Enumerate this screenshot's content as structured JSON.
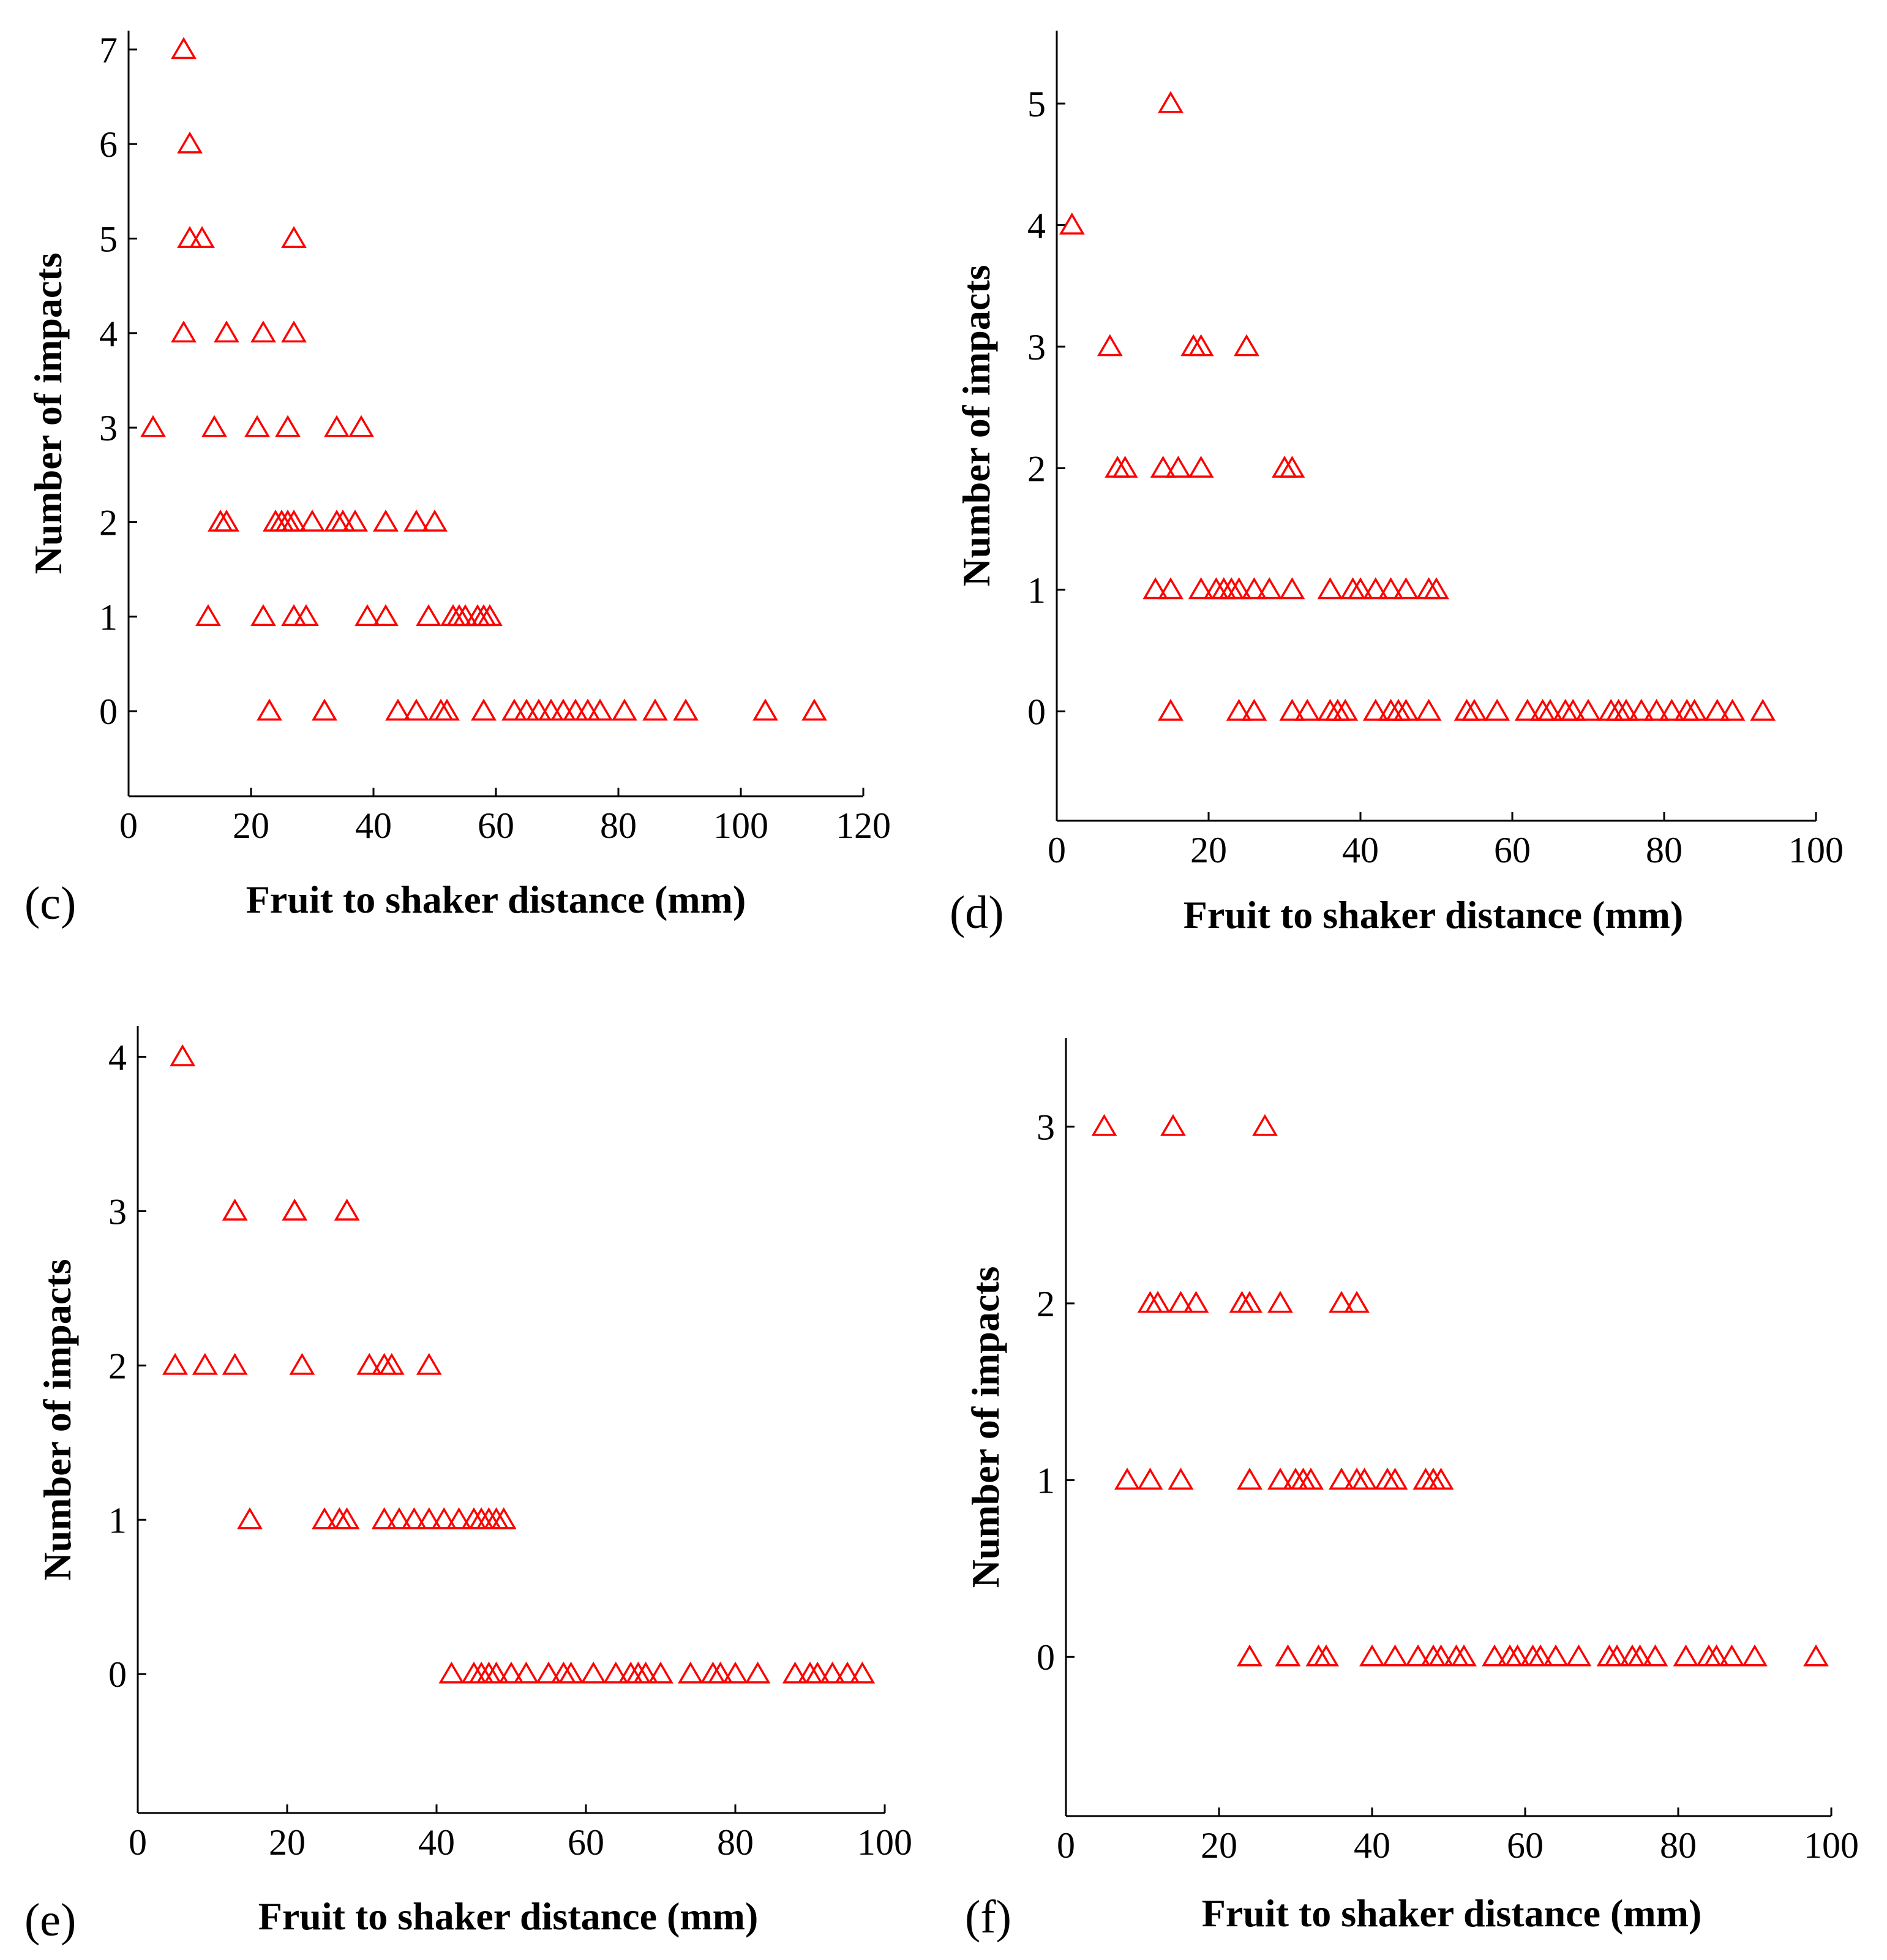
{
  "figure": {
    "marker_color": "#ff0000",
    "axis_color": "#000000"
  },
  "chart_data": [
    {
      "panel": "(c)",
      "type": "scatter",
      "marker": "triangle-open",
      "xlabel": "Fruit to shaker distance (mm)",
      "ylabel": "Number of impacts",
      "xlim": [
        0,
        120
      ],
      "ylim": [
        -0.9,
        7.2
      ],
      "xticks": [
        0,
        20,
        40,
        60,
        80,
        100,
        120
      ],
      "yticks": [
        0,
        1,
        2,
        3,
        4,
        5,
        6,
        7
      ],
      "points": [
        [
          9,
          7
        ],
        [
          10,
          6
        ],
        [
          10,
          5
        ],
        [
          12,
          5
        ],
        [
          27,
          5
        ],
        [
          9,
          4
        ],
        [
          16,
          4
        ],
        [
          22,
          4
        ],
        [
          27,
          4
        ],
        [
          4,
          3
        ],
        [
          14,
          3
        ],
        [
          21,
          3
        ],
        [
          26,
          3
        ],
        [
          34,
          3
        ],
        [
          38,
          3
        ],
        [
          15,
          2
        ],
        [
          16,
          2
        ],
        [
          24,
          2
        ],
        [
          25,
          2
        ],
        [
          26,
          2
        ],
        [
          27,
          2
        ],
        [
          30,
          2
        ],
        [
          34,
          2
        ],
        [
          35,
          2
        ],
        [
          37,
          2
        ],
        [
          42,
          2
        ],
        [
          47,
          2
        ],
        [
          50,
          2
        ],
        [
          13,
          1
        ],
        [
          22,
          1
        ],
        [
          27,
          1
        ],
        [
          29,
          1
        ],
        [
          39,
          1
        ],
        [
          42,
          1
        ],
        [
          49,
          1
        ],
        [
          53,
          1
        ],
        [
          54,
          1
        ],
        [
          55,
          1
        ],
        [
          57,
          1
        ],
        [
          58,
          1
        ],
        [
          59,
          1
        ],
        [
          23,
          0
        ],
        [
          32,
          0
        ],
        [
          44,
          0
        ],
        [
          47,
          0
        ],
        [
          51,
          0
        ],
        [
          52,
          0
        ],
        [
          58,
          0
        ],
        [
          63,
          0
        ],
        [
          65,
          0
        ],
        [
          67,
          0
        ],
        [
          69,
          0
        ],
        [
          71,
          0
        ],
        [
          73,
          0
        ],
        [
          75,
          0
        ],
        [
          77,
          0
        ],
        [
          81,
          0
        ],
        [
          86,
          0
        ],
        [
          91,
          0
        ],
        [
          104,
          0
        ],
        [
          112,
          0
        ]
      ]
    },
    {
      "panel": "(d)",
      "type": "scatter",
      "marker": "triangle-open",
      "xlabel": "Fruit to shaker distance (mm)",
      "ylabel": "Number of impacts",
      "xlim": [
        0,
        100
      ],
      "ylim": [
        -0.9,
        5.6
      ],
      "xticks": [
        0,
        20,
        40,
        60,
        80,
        100
      ],
      "yticks": [
        0,
        1,
        2,
        3,
        4,
        5
      ],
      "points": [
        [
          15,
          5
        ],
        [
          2,
          4
        ],
        [
          7,
          3
        ],
        [
          18,
          3
        ],
        [
          19,
          3
        ],
        [
          25,
          3
        ],
        [
          8,
          2
        ],
        [
          9,
          2
        ],
        [
          14,
          2
        ],
        [
          16,
          2
        ],
        [
          19,
          2
        ],
        [
          30,
          2
        ],
        [
          31,
          2
        ],
        [
          13,
          1
        ],
        [
          15,
          1
        ],
        [
          19,
          1
        ],
        [
          21,
          1
        ],
        [
          22,
          1
        ],
        [
          23,
          1
        ],
        [
          24,
          1
        ],
        [
          26,
          1
        ],
        [
          28,
          1
        ],
        [
          31,
          1
        ],
        [
          36,
          1
        ],
        [
          39,
          1
        ],
        [
          40,
          1
        ],
        [
          42,
          1
        ],
        [
          44,
          1
        ],
        [
          46,
          1
        ],
        [
          49,
          1
        ],
        [
          50,
          1
        ],
        [
          15,
          0
        ],
        [
          24,
          0
        ],
        [
          26,
          0
        ],
        [
          31,
          0
        ],
        [
          33,
          0
        ],
        [
          36,
          0
        ],
        [
          37,
          0
        ],
        [
          38,
          0
        ],
        [
          42,
          0
        ],
        [
          44,
          0
        ],
        [
          45,
          0
        ],
        [
          46,
          0
        ],
        [
          49,
          0
        ],
        [
          54,
          0
        ],
        [
          55,
          0
        ],
        [
          58,
          0
        ],
        [
          62,
          0
        ],
        [
          64,
          0
        ],
        [
          65,
          0
        ],
        [
          67,
          0
        ],
        [
          68,
          0
        ],
        [
          70,
          0
        ],
        [
          73,
          0
        ],
        [
          74,
          0
        ],
        [
          75,
          0
        ],
        [
          77,
          0
        ],
        [
          79,
          0
        ],
        [
          81,
          0
        ],
        [
          83,
          0
        ],
        [
          84,
          0
        ],
        [
          87,
          0
        ],
        [
          89,
          0
        ],
        [
          93,
          0
        ]
      ]
    },
    {
      "panel": "(e)",
      "type": "scatter",
      "marker": "triangle-open",
      "xlabel": "Fruit to shaker distance (mm)",
      "ylabel": "Number of impacts",
      "xlim": [
        0,
        100
      ],
      "ylim": [
        -0.9,
        4.2
      ],
      "xticks": [
        0,
        20,
        40,
        60,
        80,
        100
      ],
      "yticks": [
        0,
        1,
        2,
        3,
        4
      ],
      "points": [
        [
          6,
          4
        ],
        [
          13,
          3
        ],
        [
          21,
          3
        ],
        [
          28,
          3
        ],
        [
          5,
          2
        ],
        [
          9,
          2
        ],
        [
          13,
          2
        ],
        [
          22,
          2
        ],
        [
          31,
          2
        ],
        [
          33,
          2
        ],
        [
          34,
          2
        ],
        [
          39,
          2
        ],
        [
          15,
          1
        ],
        [
          25,
          1
        ],
        [
          27,
          1
        ],
        [
          28,
          1
        ],
        [
          33,
          1
        ],
        [
          35,
          1
        ],
        [
          37,
          1
        ],
        [
          39,
          1
        ],
        [
          41,
          1
        ],
        [
          43,
          1
        ],
        [
          45,
          1
        ],
        [
          46,
          1
        ],
        [
          47,
          1
        ],
        [
          48,
          1
        ],
        [
          49,
          1
        ],
        [
          42,
          0
        ],
        [
          45,
          0
        ],
        [
          46,
          0
        ],
        [
          47,
          0
        ],
        [
          48,
          0
        ],
        [
          50,
          0
        ],
        [
          52,
          0
        ],
        [
          55,
          0
        ],
        [
          57,
          0
        ],
        [
          58,
          0
        ],
        [
          61,
          0
        ],
        [
          64,
          0
        ],
        [
          66,
          0
        ],
        [
          67,
          0
        ],
        [
          68,
          0
        ],
        [
          70,
          0
        ],
        [
          74,
          0
        ],
        [
          77,
          0
        ],
        [
          78,
          0
        ],
        [
          80,
          0
        ],
        [
          83,
          0
        ],
        [
          88,
          0
        ],
        [
          90,
          0
        ],
        [
          91,
          0
        ],
        [
          93,
          0
        ],
        [
          95,
          0
        ],
        [
          97,
          0
        ]
      ]
    },
    {
      "panel": "(f)",
      "type": "scatter",
      "marker": "triangle-open",
      "xlabel": "Fruit to shaker distance (mm)",
      "ylabel": "Number of impacts",
      "xlim": [
        0,
        100
      ],
      "ylim": [
        -0.9,
        3.5
      ],
      "xticks": [
        0,
        20,
        40,
        60,
        80,
        100
      ],
      "yticks": [
        0,
        1,
        2,
        3
      ],
      "points": [
        [
          5,
          3
        ],
        [
          14,
          3
        ],
        [
          26,
          3
        ],
        [
          11,
          2
        ],
        [
          12,
          2
        ],
        [
          15,
          2
        ],
        [
          17,
          2
        ],
        [
          23,
          2
        ],
        [
          24,
          2
        ],
        [
          28,
          2
        ],
        [
          36,
          2
        ],
        [
          38,
          2
        ],
        [
          8,
          1
        ],
        [
          11,
          1
        ],
        [
          15,
          1
        ],
        [
          24,
          1
        ],
        [
          28,
          1
        ],
        [
          30,
          1
        ],
        [
          31,
          1
        ],
        [
          32,
          1
        ],
        [
          36,
          1
        ],
        [
          38,
          1
        ],
        [
          39,
          1
        ],
        [
          42,
          1
        ],
        [
          43,
          1
        ],
        [
          47,
          1
        ],
        [
          48,
          1
        ],
        [
          49,
          1
        ],
        [
          24,
          0
        ],
        [
          29,
          0
        ],
        [
          33,
          0
        ],
        [
          34,
          0
        ],
        [
          40,
          0
        ],
        [
          43,
          0
        ],
        [
          46,
          0
        ],
        [
          48,
          0
        ],
        [
          49,
          0
        ],
        [
          51,
          0
        ],
        [
          52,
          0
        ],
        [
          56,
          0
        ],
        [
          58,
          0
        ],
        [
          59,
          0
        ],
        [
          61,
          0
        ],
        [
          62,
          0
        ],
        [
          64,
          0
        ],
        [
          67,
          0
        ],
        [
          71,
          0
        ],
        [
          72,
          0
        ],
        [
          74,
          0
        ],
        [
          75,
          0
        ],
        [
          77,
          0
        ],
        [
          81,
          0
        ],
        [
          84,
          0
        ],
        [
          85,
          0
        ],
        [
          87,
          0
        ],
        [
          90,
          0
        ],
        [
          98,
          0
        ]
      ]
    }
  ]
}
